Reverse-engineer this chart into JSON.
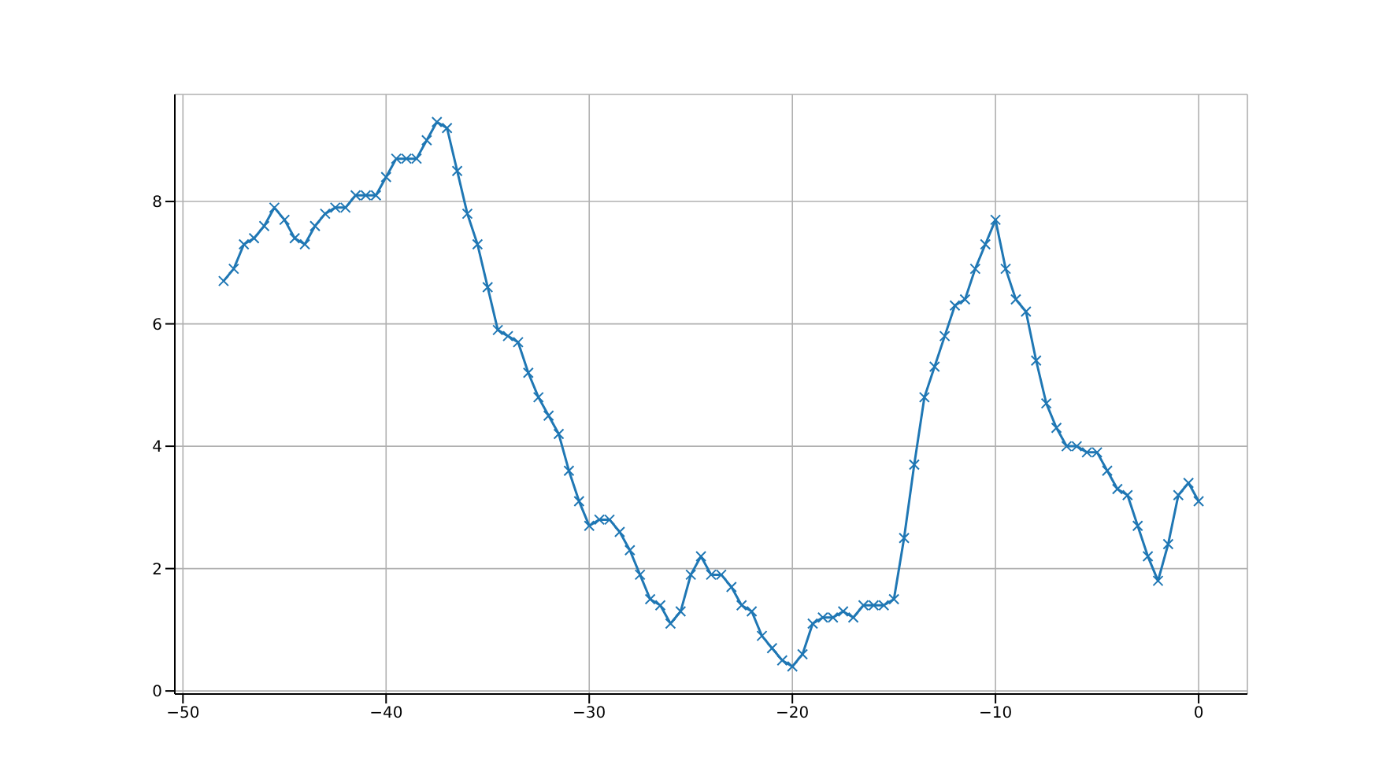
{
  "chart_data": {
    "type": "line",
    "x": [
      -48,
      -47.5,
      -47,
      -46.5,
      -46,
      -45.5,
      -45,
      -44.5,
      -44,
      -43.5,
      -43,
      -42.5,
      -42,
      -41.5,
      -41,
      -40.5,
      -40,
      -39.5,
      -39,
      -38.5,
      -38,
      -37.5,
      -37,
      -36.5,
      -36,
      -35.5,
      -35,
      -34.5,
      -34,
      -33.5,
      -33,
      -32.5,
      -32,
      -31.5,
      -31,
      -30.5,
      -30,
      -29.5,
      -29,
      -28.5,
      -28,
      -27.5,
      -27,
      -26.5,
      -26,
      -25.5,
      -25,
      -24.5,
      -24,
      -23.5,
      -23,
      -22.5,
      -22,
      -21.5,
      -21,
      -20.5,
      -20,
      -19.5,
      -19,
      -18.5,
      -18,
      -17.5,
      -17,
      -16.5,
      -16,
      -15.5,
      -15,
      -14.5,
      -14,
      -13.5,
      -13,
      -12.5,
      -12,
      -11.5,
      -11,
      -10.5,
      -10,
      -9.5,
      -9,
      -8.5,
      -8,
      -7.5,
      -7,
      -6.5,
      -6,
      -5.5,
      -5,
      -4.5,
      -4,
      -3.5,
      -3,
      -2.5,
      -2,
      -1.5,
      -1,
      -0.5,
      0
    ],
    "series": [
      {
        "color": "#1f77b4",
        "values": [
          6.7,
          6.9,
          7.3,
          7.4,
          7.6,
          7.9,
          7.7,
          7.4,
          7.3,
          7.6,
          7.8,
          7.9,
          7.9,
          8.1,
          8.1,
          8.1,
          8.4,
          8.7,
          8.7,
          8.7,
          9.0,
          9.3,
          9.2,
          8.5,
          7.8,
          7.3,
          6.6,
          5.9,
          5.8,
          5.7,
          5.2,
          4.8,
          4.5,
          4.2,
          3.6,
          3.1,
          2.7,
          2.8,
          2.8,
          2.6,
          2.3,
          1.9,
          1.5,
          1.4,
          1.1,
          1.3,
          1.9,
          2.2,
          1.9,
          1.9,
          1.7,
          1.4,
          1.3,
          0.9,
          0.7,
          0.5,
          0.4,
          0.6,
          1.1,
          1.2,
          1.2,
          1.3,
          1.2,
          1.4,
          1.4,
          1.4,
          1.5,
          2.5,
          3.7,
          4.8,
          5.3,
          5.8,
          6.3,
          6.4,
          6.9,
          7.3,
          7.7,
          6.9,
          6.4,
          6.2,
          5.4,
          4.7,
          4.3,
          4.0,
          4.0,
          3.9,
          3.9,
          3.6,
          3.3,
          3.2,
          2.7,
          2.2,
          1.8,
          2.4,
          3.2,
          3.4,
          3.1
        ]
      }
    ],
    "xlim": [
      -50.4,
      2.4
    ],
    "xticks": [
      -50,
      -40,
      -30,
      -20,
      -10,
      0
    ],
    "ylim": [
      -0.05,
      9.75
    ],
    "yticks": [
      0,
      2,
      4,
      6,
      8
    ],
    "grid": true,
    "marker": "cross",
    "line_style": "solid"
  }
}
